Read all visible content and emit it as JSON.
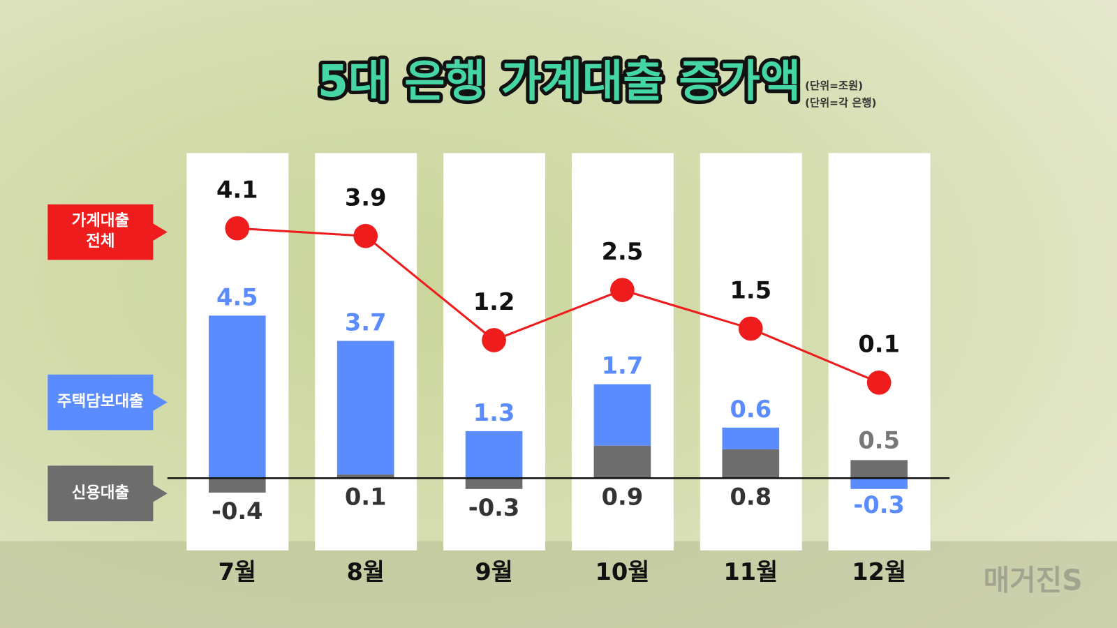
{
  "chart_data": {
    "type": "bar",
    "title": "5대 은행 가계대출 증가액",
    "subtitle": [
      "(단위=조원)",
      "(단위=각 은행)"
    ],
    "categories": [
      "7월",
      "8월",
      "9월",
      "10월",
      "11월",
      "12월"
    ],
    "series": [
      {
        "name": "가계대출 전체",
        "type": "line",
        "color": "#ee1c1c",
        "axis": "y2",
        "values": [
          4.1,
          3.9,
          1.2,
          2.5,
          1.5,
          0.1
        ]
      },
      {
        "name": "주택담보대출",
        "type": "bar",
        "color": "#5b8cff",
        "values": [
          4.5,
          3.7,
          1.3,
          1.7,
          0.6,
          -0.3
        ]
      },
      {
        "name": "신용대출",
        "type": "bar",
        "color": "#6d6d6d",
        "values": [
          -0.4,
          0.1,
          -0.3,
          0.9,
          0.8,
          0.5
        ]
      }
    ],
    "ylim": [
      -2,
      9
    ],
    "y2lim": [
      -4.25,
      6.05
    ],
    "watermark": "매거진S"
  }
}
